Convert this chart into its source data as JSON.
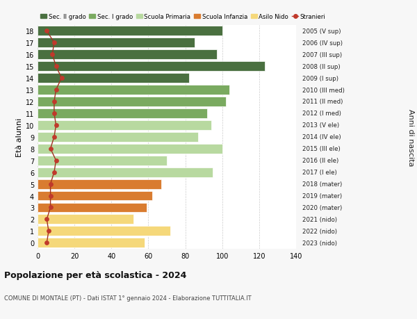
{
  "ages": [
    18,
    17,
    16,
    15,
    14,
    13,
    12,
    11,
    10,
    9,
    8,
    7,
    6,
    5,
    4,
    3,
    2,
    1,
    0
  ],
  "bar_values": [
    100,
    85,
    97,
    123,
    82,
    104,
    102,
    92,
    94,
    87,
    100,
    70,
    95,
    67,
    62,
    59,
    52,
    72,
    58
  ],
  "bar_colors": [
    "#4a7040",
    "#4a7040",
    "#4a7040",
    "#4a7040",
    "#4a7040",
    "#7aaa60",
    "#7aaa60",
    "#7aaa60",
    "#b8d9a0",
    "#b8d9a0",
    "#b8d9a0",
    "#b8d9a0",
    "#b8d9a0",
    "#d97c30",
    "#d97c30",
    "#d97c30",
    "#f5d87a",
    "#f5d87a",
    "#f5d87a"
  ],
  "stranieri_values": [
    5,
    9,
    8,
    10,
    13,
    10,
    9,
    9,
    10,
    9,
    7,
    10,
    9,
    7,
    7,
    7,
    5,
    6,
    5
  ],
  "right_labels": [
    "2005 (V sup)",
    "2006 (IV sup)",
    "2007 (III sup)",
    "2008 (II sup)",
    "2009 (I sup)",
    "2010 (III med)",
    "2011 (II med)",
    "2012 (I med)",
    "2013 (V ele)",
    "2014 (IV ele)",
    "2015 (III ele)",
    "2016 (II ele)",
    "2017 (I ele)",
    "2018 (mater)",
    "2019 (mater)",
    "2020 (mater)",
    "2021 (nido)",
    "2022 (nido)",
    "2023 (nido)"
  ],
  "legend_labels": [
    "Sec. II grado",
    "Sec. I grado",
    "Scuola Primaria",
    "Scuola Infanzia",
    "Asilo Nido",
    "Stranieri"
  ],
  "legend_colors": [
    "#4a7040",
    "#7aaa60",
    "#b8d9a0",
    "#d97c30",
    "#f5d87a",
    "#c0392b"
  ],
  "title": "Popolazione per età scolastica - 2024",
  "subtitle": "COMUNE DI MONTALE (PT) - Dati ISTAT 1° gennaio 2024 - Elaborazione TUTTITALIA.IT",
  "ylabel_left": "Età alunni",
  "ylabel_right": "Anni di nascita",
  "xlim": [
    0,
    140
  ],
  "xticks": [
    0,
    20,
    40,
    60,
    80,
    100,
    120,
    140
  ],
  "background_color": "#f7f7f7",
  "bar_background": "#ffffff",
  "stranieri_color": "#c0392b",
  "stranieri_line_color": "#a03020"
}
